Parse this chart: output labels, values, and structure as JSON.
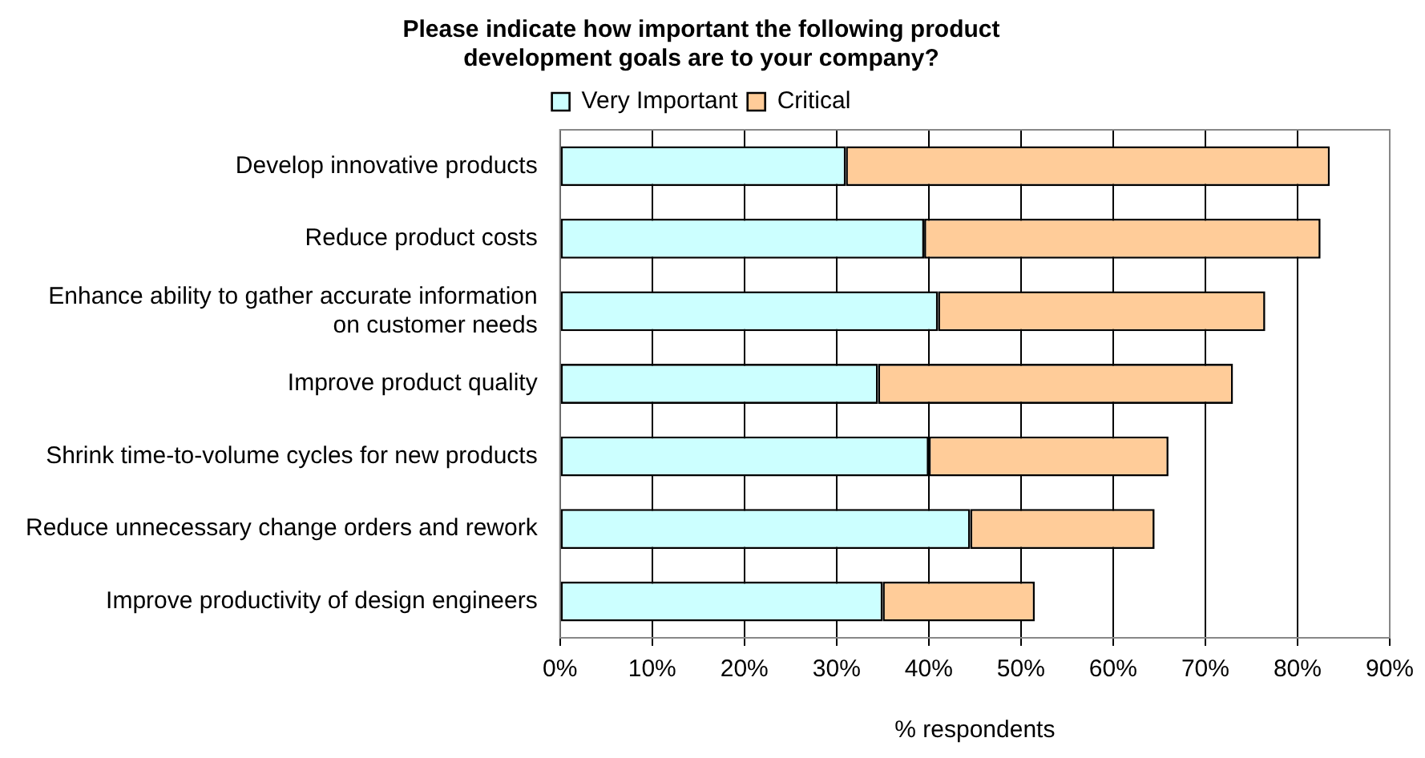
{
  "chart_data": {
    "type": "bar",
    "orientation": "horizontal",
    "stacked": true,
    "title": "Please indicate how important the following product development goals are to your company?",
    "xlabel": "% respondents",
    "categories": [
      "Develop innovative products",
      "Reduce product costs",
      "Enhance ability to gather accurate information on customer needs",
      "Improve product quality",
      "Shrink time-to-volume cycles for new products",
      "Reduce unnecessary change orders and rework",
      "Improve productivity of design engineers"
    ],
    "series": [
      {
        "name": "Very Important",
        "color": "#ccffff",
        "values": [
          31,
          39.5,
          41,
          34.5,
          40,
          44.5,
          35
        ]
      },
      {
        "name": "Critical",
        "color": "#ffcc99",
        "values": [
          52.5,
          43,
          35.5,
          38.5,
          26,
          20,
          16.5
        ]
      }
    ],
    "xlim": [
      0,
      90
    ],
    "xticks": [
      {
        "value": 0,
        "label": "0%"
      },
      {
        "value": 10,
        "label": "10%"
      },
      {
        "value": 20,
        "label": "20%"
      },
      {
        "value": 30,
        "label": "30%"
      },
      {
        "value": 40,
        "label": "40%"
      },
      {
        "value": 50,
        "label": "50%"
      },
      {
        "value": 60,
        "label": "60%"
      },
      {
        "value": 70,
        "label": "70%"
      },
      {
        "value": 80,
        "label": "80%"
      },
      {
        "value": 90,
        "label": "90%"
      }
    ],
    "grid": "x",
    "legend": "top"
  }
}
